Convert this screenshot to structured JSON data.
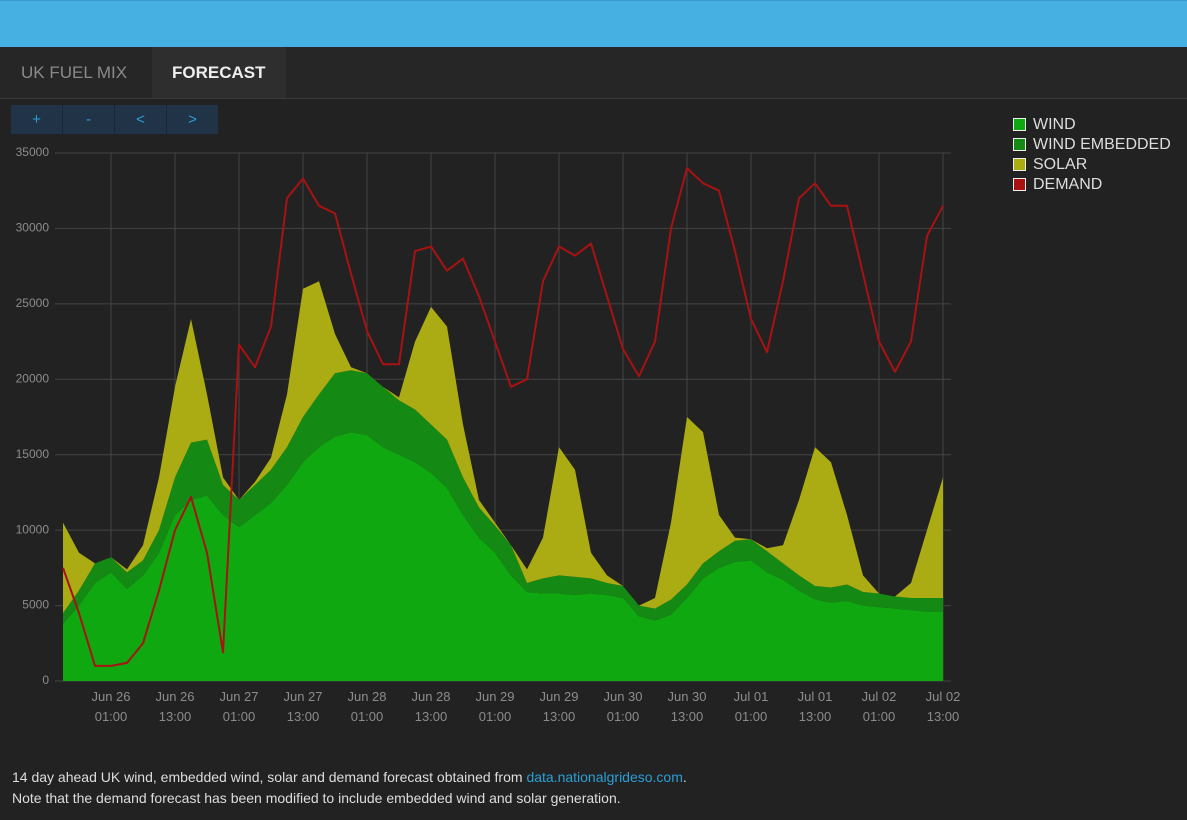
{
  "tabs": [
    "UK FUEL MIX",
    "FORECAST"
  ],
  "controls": [
    "+",
    "-",
    "<",
    ">"
  ],
  "chart_data": {
    "type": "stacked-area",
    "x": [
      "Jun 25 16:00",
      "Jun 25 19:00",
      "Jun 25 22:00",
      "Jun 26 01:00",
      "Jun 26 04:00",
      "Jun 26 07:00",
      "Jun 26 10:00",
      "Jun 26 13:00",
      "Jun 26 16:00",
      "Jun 26 19:00",
      "Jun 26 22:00",
      "Jun 27 01:00",
      "Jun 27 04:00",
      "Jun 27 07:00",
      "Jun 27 10:00",
      "Jun 27 13:00",
      "Jun 27 16:00",
      "Jun 27 19:00",
      "Jun 27 22:00",
      "Jun 28 01:00",
      "Jun 28 04:00",
      "Jun 28 07:00",
      "Jun 28 10:00",
      "Jun 28 13:00",
      "Jun 28 16:00",
      "Jun 28 19:00",
      "Jun 28 22:00",
      "Jun 29 01:00",
      "Jun 29 04:00",
      "Jun 29 07:00",
      "Jun 29 10:00",
      "Jun 29 13:00",
      "Jun 29 16:00",
      "Jun 29 19:00",
      "Jun 29 22:00",
      "Jun 30 01:00",
      "Jun 30 04:00",
      "Jun 30 07:00",
      "Jun 30 10:00",
      "Jun 30 13:00",
      "Jun 30 16:00",
      "Jun 30 19:00",
      "Jun 30 22:00",
      "Jul 01 01:00",
      "Jul 01 04:00",
      "Jul 01 07:00",
      "Jul 01 10:00",
      "Jul 01 13:00",
      "Jul 01 16:00",
      "Jul 01 19:00",
      "Jul 01 22:00",
      "Jul 02 01:00",
      "Jul 02 04:00",
      "Jul 02 07:00",
      "Jul 02 10:00",
      "Jul 02 13:00"
    ],
    "xticks": [
      "Jun 26 01:00",
      "Jun 26 13:00",
      "Jun 27 01:00",
      "Jun 27 13:00",
      "Jun 28 01:00",
      "Jun 28 13:00",
      "Jun 29 01:00",
      "Jun 29 13:00",
      "Jun 30 01:00",
      "Jun 30 13:00",
      "Jul 01 01:00",
      "Jul 01 13:00",
      "Jul 02 01:00",
      "Jul 02 13:00"
    ],
    "ylim": [
      0,
      35000
    ],
    "yticks": [
      0,
      5000,
      10000,
      15000,
      20000,
      25000,
      30000,
      35000
    ],
    "grid": true,
    "legend": "right",
    "series": [
      {
        "name": "WIND",
        "color": "#10a810",
        "type": "area",
        "values": [
          3800,
          5000,
          6500,
          7200,
          6100,
          7000,
          8500,
          11000,
          12000,
          12300,
          11000,
          10200,
          11000,
          11800,
          13000,
          14500,
          15500,
          16200,
          16500,
          16300,
          15500,
          15000,
          14500,
          13800,
          12800,
          11000,
          9500,
          8500,
          7000,
          5900,
          5800,
          5800,
          5700,
          5800,
          5700,
          5500,
          4300,
          4000,
          4400,
          5500,
          6800,
          7500,
          7900,
          8000,
          7200,
          6700,
          6000,
          5400,
          5200,
          5300,
          5000,
          4900,
          4800,
          4700,
          4600,
          4600
        ]
      },
      {
        "name": "WIND EMBEDDED",
        "color": "#148a14",
        "type": "area",
        "values": [
          700,
          1000,
          1300,
          1000,
          1100,
          1000,
          1500,
          2500,
          3800,
          3700,
          2000,
          1800,
          2000,
          2200,
          2500,
          3000,
          3500,
          4200,
          4100,
          4100,
          4000,
          3600,
          3500,
          3200,
          3200,
          2500,
          2000,
          1800,
          2000,
          600,
          1000,
          1200,
          1200,
          1000,
          800,
          800,
          700,
          800,
          1000,
          900,
          1000,
          1100,
          1400,
          1400,
          1400,
          1100,
          1000,
          900,
          1000,
          1100,
          900,
          900,
          800,
          800,
          900,
          900
        ]
      },
      {
        "name": "SOLAR",
        "color": "#abab14",
        "type": "area",
        "values": [
          6000,
          2500,
          0,
          0,
          200,
          1000,
          3500,
          6000,
          8200,
          3000,
          500,
          0,
          200,
          800,
          3500,
          8500,
          7500,
          2600,
          200,
          0,
          0,
          200,
          4500,
          7800,
          7500,
          3500,
          500,
          200,
          0,
          900,
          2700,
          8500,
          7100,
          1700,
          500,
          0,
          0,
          700,
          5100,
          11100,
          8700,
          2400,
          200,
          0,
          200,
          1200,
          5000,
          9200,
          8300,
          4600,
          1100,
          0,
          0,
          1000,
          4500,
          8000
        ]
      },
      {
        "name": "DEMAND",
        "color": "#a81212",
        "type": "line",
        "values": [
          7500,
          4500,
          1000,
          1000,
          1200,
          2500,
          6000,
          10000,
          12200,
          8500,
          1900,
          22300,
          20800,
          23500,
          32000,
          33300,
          31500,
          31000,
          27000,
          23200,
          21000,
          21000,
          28500,
          28800,
          27200,
          28000,
          25500,
          22500,
          19500,
          20000,
          26500,
          28800,
          28200,
          29000,
          25500,
          22000,
          20200,
          22500,
          30000,
          34000,
          33000,
          32500,
          28500,
          24000,
          21800,
          26500,
          32000,
          33000,
          31500,
          31500,
          27000,
          22500,
          20500,
          22500,
          29500,
          31500
        ]
      }
    ]
  },
  "footer": {
    "line1": "14 day ahead UK wind, embedded wind, solar and demand forecast obtained from ",
    "link": "data.nationalgrideso.com",
    "line1_end": ".",
    "line2": "Note that the demand forecast has been modified to include embedded wind and solar generation."
  }
}
